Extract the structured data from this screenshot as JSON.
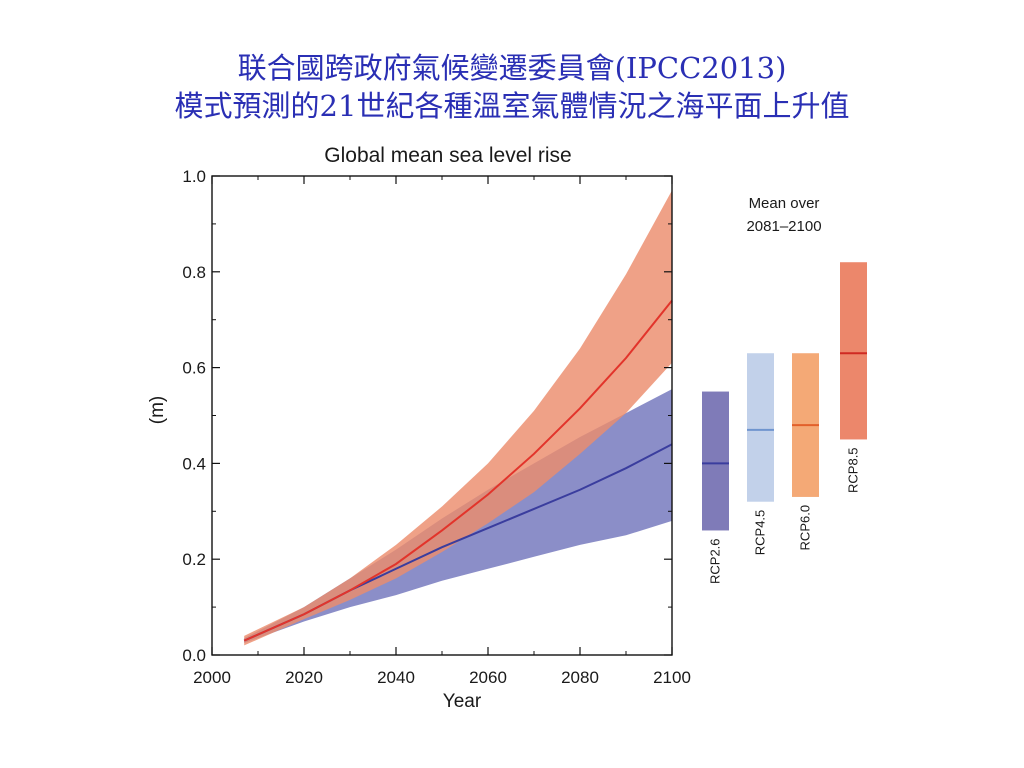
{
  "slide": {
    "title_line1": "联合國跨政府氣候變遷委員會(IPCC2013)",
    "title_line2": "模式預測的21世紀各種溫室氣體情況之海平面上升值"
  },
  "chart_data": {
    "type": "area",
    "title": "Global mean sea level rise",
    "xlabel": "Year",
    "ylabel": "(m)",
    "xlim": [
      2000,
      2100
    ],
    "ylim": [
      0,
      1.0
    ],
    "x_ticks": [
      "2000",
      "2020",
      "2040",
      "2060",
      "2080",
      "2100"
    ],
    "y_ticks": [
      "0.0",
      "0.2",
      "0.4",
      "0.6",
      "0.8",
      "1.0"
    ],
    "x": [
      2007,
      2020,
      2030,
      2040,
      2050,
      2060,
      2070,
      2080,
      2090,
      2100
    ],
    "series": [
      {
        "name": "RCP2.6",
        "color": "#3a3d9e",
        "band_color": "#8b8ec8",
        "mean": [
          0.03,
          0.085,
          0.135,
          0.18,
          0.225,
          0.265,
          0.305,
          0.345,
          0.39,
          0.44
        ],
        "low": [
          0.025,
          0.07,
          0.1,
          0.125,
          0.155,
          0.18,
          0.205,
          0.23,
          0.25,
          0.28
        ],
        "high": [
          0.035,
          0.1,
          0.16,
          0.22,
          0.285,
          0.345,
          0.4,
          0.455,
          0.505,
          0.555
        ]
      },
      {
        "name": "RCP8.5",
        "color": "#e2342b",
        "band_color": "#ec8c6c",
        "mean": [
          0.03,
          0.085,
          0.135,
          0.19,
          0.26,
          0.335,
          0.42,
          0.515,
          0.62,
          0.74
        ],
        "low": [
          0.02,
          0.075,
          0.115,
          0.16,
          0.215,
          0.275,
          0.34,
          0.42,
          0.505,
          0.61
        ],
        "high": [
          0.04,
          0.1,
          0.16,
          0.23,
          0.31,
          0.4,
          0.51,
          0.64,
          0.795,
          0.97
        ]
      }
    ],
    "mean_panel": {
      "title_line1": "Mean over",
      "title_line2": "2081–2100",
      "bars": [
        {
          "name": "RCP2.6",
          "low": 0.26,
          "high": 0.55,
          "mean": 0.4,
          "fill": "#7f7bb8",
          "line": "#3a3d9e"
        },
        {
          "name": "RCP4.5",
          "low": 0.32,
          "high": 0.63,
          "mean": 0.47,
          "fill": "#c2d1ea",
          "line": "#6f95cf"
        },
        {
          "name": "RCP6.0",
          "low": 0.33,
          "high": 0.63,
          "mean": 0.48,
          "fill": "#f4a976",
          "line": "#e2602b"
        },
        {
          "name": "RCP8.5",
          "low": 0.45,
          "high": 0.82,
          "mean": 0.63,
          "fill": "#ec876b",
          "line": "#cf2a22"
        }
      ]
    }
  }
}
